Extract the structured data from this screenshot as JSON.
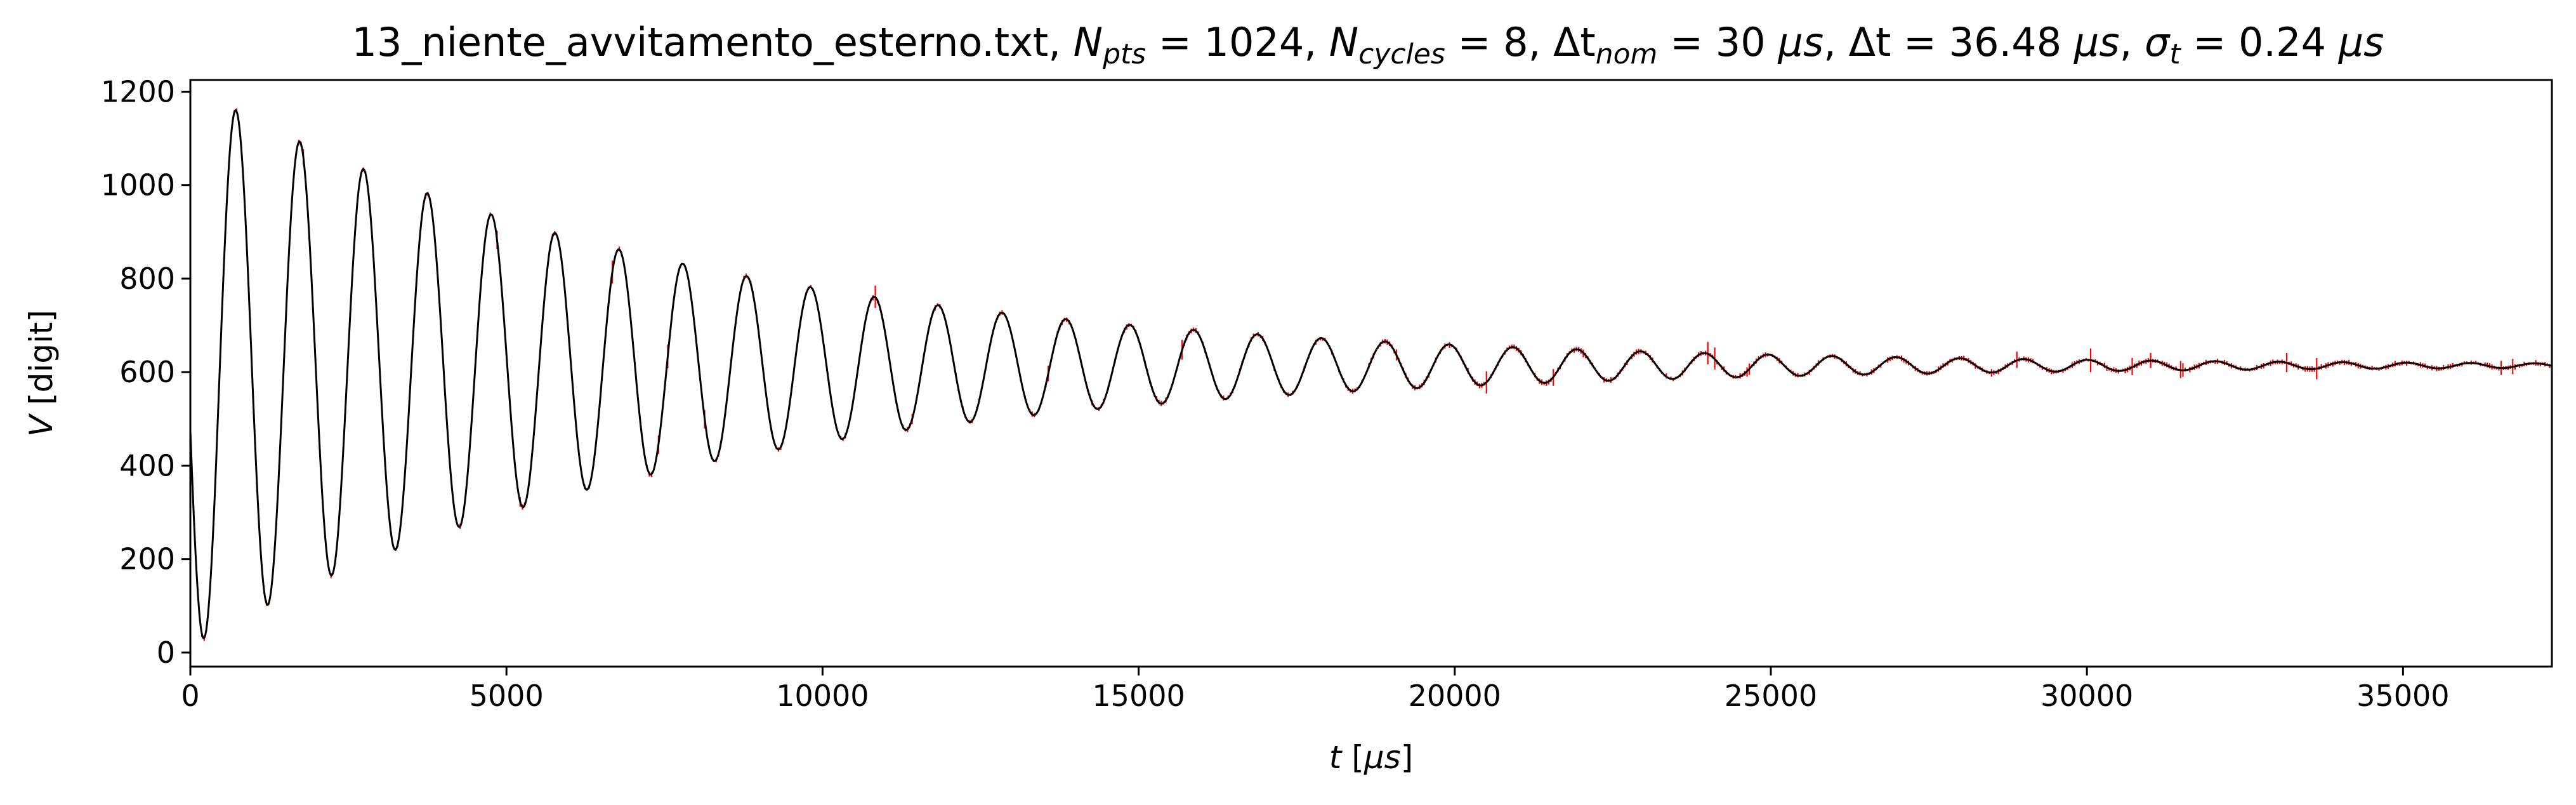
{
  "chart_data": {
    "type": "line",
    "title": {
      "file": "13_niente_avvitamento_esterno.txt, ",
      "npts_sym": "N",
      "npts_sub": "pts",
      "npts_val": " = 1024, ",
      "ncyc_sym": "N",
      "ncyc_sub": "cycles",
      "ncyc_val": " = 8, ",
      "dtnom_sym": "Δt",
      "dtnom_sub": "nom",
      "dtnom_val": " = 30 ",
      "dtnom_unit": "μs",
      "sep1": ", ",
      "dt_sym": "Δt",
      "dt_val": " = 36.48 ",
      "dt_unit": "μs",
      "sep2": ", ",
      "sig_sym": "σ",
      "sig_sub": "t",
      "sig_val": " = 0.24 ",
      "sig_unit": "μs"
    },
    "xlabel": {
      "var": "t",
      "unit_pre": " [",
      "unit": "μs",
      "unit_post": "]"
    },
    "ylabel": {
      "var": "V",
      "unit": " [digit]"
    },
    "xlim": [
      0,
      37355
    ],
    "ylim": [
      -30,
      1225
    ],
    "x_ticks": [
      0,
      5000,
      10000,
      15000,
      20000,
      25000,
      30000,
      35000
    ],
    "y_ticks": [
      0,
      200,
      400,
      600,
      800,
      1000,
      1200
    ],
    "grid": false,
    "series": [
      {
        "kind": "measured data with error bars",
        "color": "#ff0000",
        "n_points": 1024,
        "x_step": 36.48,
        "model": {
          "offset": 614,
          "amplitude": 600,
          "decay_time": 7700,
          "period": 1010,
          "first_max": 720
        }
      },
      {
        "kind": "line",
        "color": "#000000",
        "model": {
          "offset": 614,
          "amplitude": 600,
          "decay_time": 7700,
          "period": 1010,
          "first_max": 720
        }
      }
    ],
    "colors": {
      "data": "#ff0000",
      "line": "#000000",
      "axes": "#000000",
      "background": "#ffffff"
    }
  }
}
